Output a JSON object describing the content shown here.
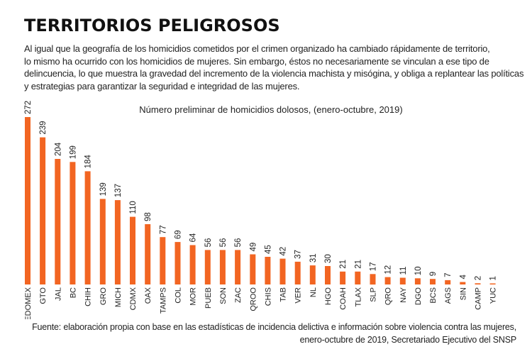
{
  "headline": "TERRITORIOS PELIGROSOS",
  "intro_lines": [
    "Al igual que la geografía de los homicidios cometidos por el crimen organizado ha cambiado rápidamente de territorio,",
    "lo mismo ha ocurrido con los homicidios de mujeres. Sin embargo, éstos no necesariamente se vinculan a ese tipo de",
    "delincuencia, lo que muestra la gravedad del incremento de la violencia machista y misógina, y obliga a replantear las políticas",
    "y estrategias para garantizar la seguridad e integridad de las mujeres."
  ],
  "source_lines": [
    "Fuente: elaboración propia con base en las estadísticas de incidencia delictiva e información sobre violencia contra las mujeres,",
    "enero-octubre de 2019, Secretariado Ejecutivo del SNSP"
  ],
  "chart_data": {
    "type": "bar",
    "title": "Número preliminar de homicidios dolosos, (enero-octubre, 2019)",
    "categories": [
      "EDOMEX",
      "GTO",
      "JAL",
      "BC",
      "CHIH",
      "GRO",
      "MICH",
      "CDMX",
      "OAX",
      "TAMPS",
      "COL",
      "MOR",
      "PUEB",
      "SON",
      "ZAC",
      "QROO",
      "CHIS",
      "TAB",
      "VER",
      "NL",
      "HGO",
      "COAH",
      "TLAX",
      "SLP",
      "QRO",
      "NAY",
      "DGO",
      "BCS",
      "AGS",
      "SIN",
      "CAMP",
      "YUC"
    ],
    "values": [
      272,
      239,
      204,
      199,
      184,
      139,
      137,
      110,
      98,
      77,
      69,
      64,
      56,
      56,
      56,
      49,
      45,
      42,
      37,
      31,
      30,
      21,
      21,
      17,
      12,
      11,
      10,
      9,
      7,
      4,
      2,
      1
    ],
    "ylim": [
      0,
      272
    ],
    "bar_color": "#f26522",
    "grid": false
  }
}
